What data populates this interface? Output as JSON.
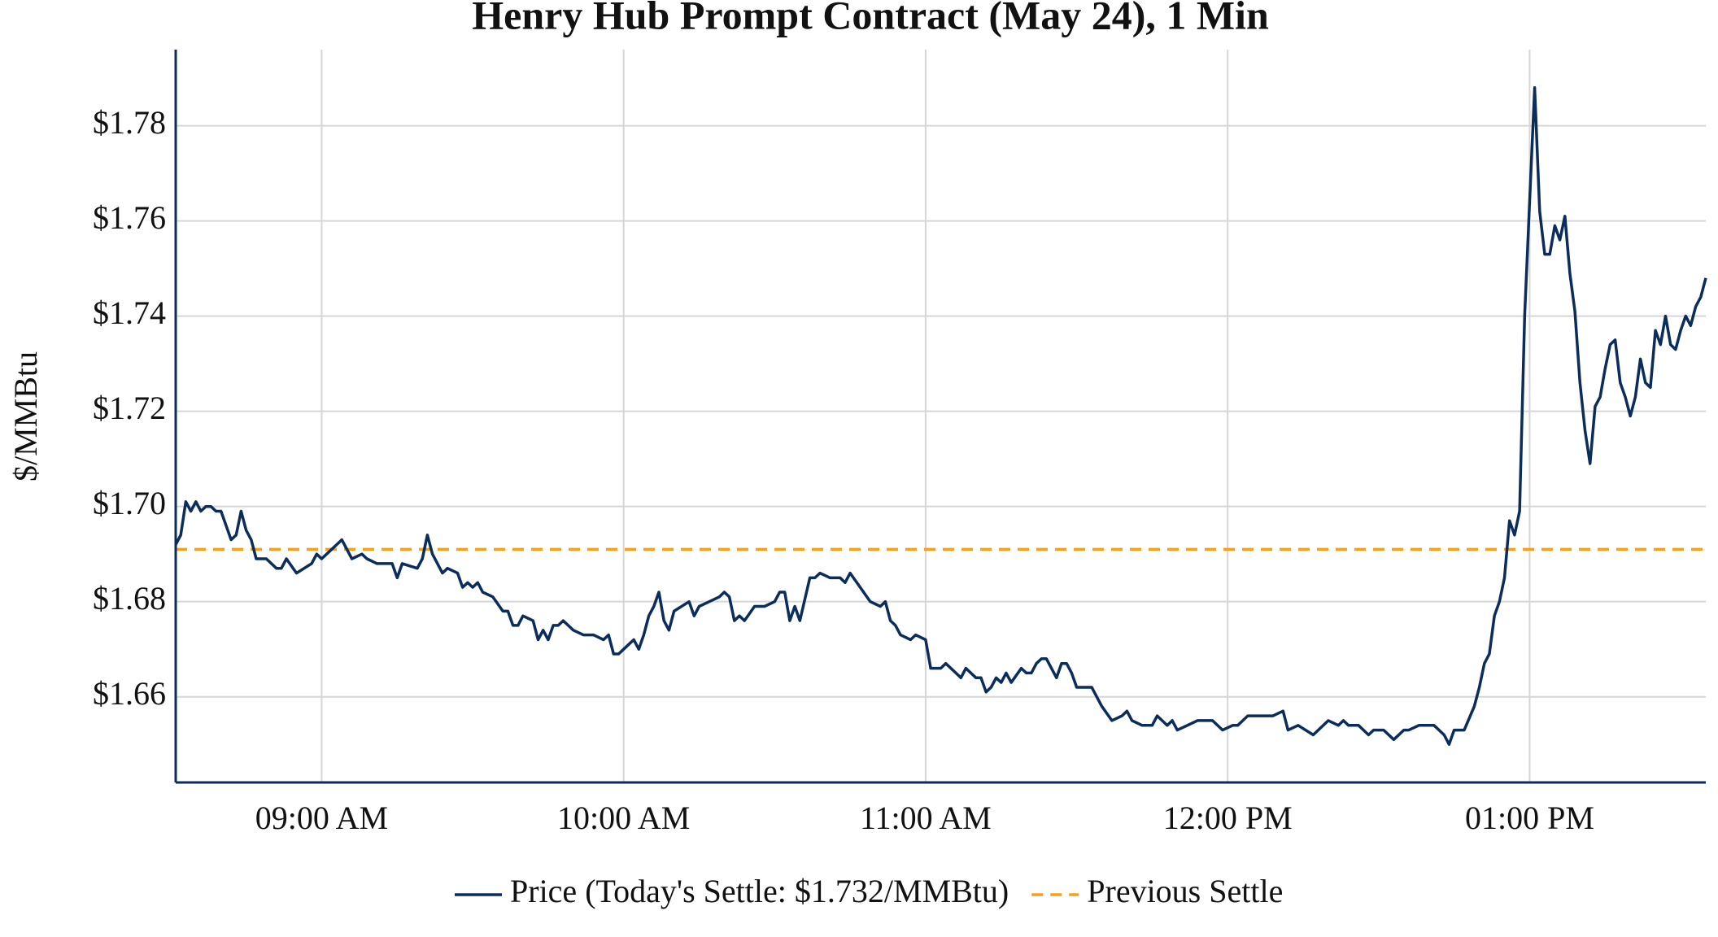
{
  "chart_data": {
    "type": "line",
    "title": "Henry Hub Prompt Contract (May 24), 1 Min",
    "ylabel": "$/MMBtu",
    "x": [
      "08:31 AM",
      "08:32 AM",
      "08:33 AM",
      "08:34 AM",
      "08:35 AM",
      "08:36 AM",
      "08:37 AM",
      "08:38 AM",
      "08:39 AM",
      "08:40 AM",
      "08:42 AM",
      "08:43 AM",
      "08:44 AM",
      "08:45 AM",
      "08:46 AM",
      "08:47 AM",
      "08:49 AM",
      "08:51 AM",
      "08:52 AM",
      "08:53 AM",
      "08:55 AM",
      "08:58 AM",
      "08:59 AM",
      "09:00 AM",
      "09:02 AM",
      "09:03 AM",
      "09:04 AM",
      "09:06 AM",
      "09:08 AM",
      "09:09 AM",
      "09:11 AM",
      "09:13 AM",
      "09:14 AM",
      "09:15 AM",
      "09:16 AM",
      "09:19 AM",
      "09:20 AM",
      "09:21 AM",
      "09:22 AM",
      "09:24 AM",
      "09:25 AM",
      "09:27 AM",
      "09:28 AM",
      "09:29 AM",
      "09:30 AM",
      "09:31 AM",
      "09:32 AM",
      "09:34 AM",
      "09:36 AM",
      "09:37 AM",
      "09:38 AM",
      "09:39 AM",
      "09:40 AM",
      "09:42 AM",
      "09:43 AM",
      "09:44 AM",
      "09:45 AM",
      "09:46 AM",
      "09:47 AM",
      "09:48 AM",
      "09:50 AM",
      "09:52 AM",
      "09:54 AM",
      "09:56 AM",
      "09:57 AM",
      "09:58 AM",
      "09:59 AM",
      "10:01 AM",
      "10:02 AM",
      "10:03 AM",
      "10:04 AM",
      "10:05 AM",
      "10:06 AM",
      "10:07 AM",
      "10:08 AM",
      "10:09 AM",
      "10:10 AM",
      "10:13 AM",
      "10:14 AM",
      "10:15 AM",
      "10:17 AM",
      "10:19 AM",
      "10:20 AM",
      "10:21 AM",
      "10:22 AM",
      "10:23 AM",
      "10:24 AM",
      "10:26 AM",
      "10:28 AM",
      "10:30 AM",
      "10:31 AM",
      "10:32 AM",
      "10:33 AM",
      "10:34 AM",
      "10:35 AM",
      "10:37 AM",
      "10:38 AM",
      "10:39 AM",
      "10:41 AM",
      "10:43 AM",
      "10:44 AM",
      "10:45 AM",
      "10:47 AM",
      "10:49 AM",
      "10:51 AM",
      "10:52 AM",
      "10:53 AM",
      "10:54 AM",
      "10:55 AM",
      "10:57 AM",
      "10:58 AM",
      "11:00 AM",
      "11:01 AM",
      "11:03 AM",
      "11:04 AM",
      "11:06 AM",
      "11:07 AM",
      "11:08 AM",
      "11:10 AM",
      "11:11 AM",
      "11:12 AM",
      "11:13 AM",
      "11:14 AM",
      "11:15 AM",
      "11:16 AM",
      "11:17 AM",
      "11:19 AM",
      "11:20 AM",
      "11:21 AM",
      "11:22 AM",
      "11:23 AM",
      "11:24 AM",
      "11:26 AM",
      "11:27 AM",
      "11:28 AM",
      "11:29 AM",
      "11:30 AM",
      "11:33 AM",
      "11:34 AM",
      "11:35 AM",
      "11:37 AM",
      "11:39 AM",
      "11:40 AM",
      "11:41 AM",
      "11:43 AM",
      "11:45 AM",
      "11:46 AM",
      "11:48 AM",
      "11:49 AM",
      "11:50 AM",
      "11:52 AM",
      "11:54 AM",
      "11:57 AM",
      "11:59 AM",
      "12:01 PM",
      "12:02 PM",
      "12:04 PM",
      "12:09 PM",
      "12:11 PM",
      "12:12 PM",
      "12:14 PM",
      "12:17 PM",
      "12:18 PM",
      "12:20 PM",
      "12:22 PM",
      "12:23 PM",
      "12:24 PM",
      "12:26 PM",
      "12:28 PM",
      "12:29 PM",
      "12:31 PM",
      "12:33 PM",
      "12:35 PM",
      "12:36 PM",
      "12:38 PM",
      "12:41 PM",
      "12:43 PM",
      "12:44 PM",
      "12:45 PM",
      "12:47 PM",
      "12:49 PM",
      "12:50 PM",
      "12:51 PM",
      "12:52 PM",
      "12:53 PM",
      "12:54 PM",
      "12:55 PM",
      "12:56 PM",
      "12:57 PM",
      "12:58 PM",
      "12:59 PM",
      "01:00 PM",
      "01:01 PM",
      "01:02 PM",
      "01:03 PM",
      "01:04 PM",
      "01:05 PM",
      "01:06 PM",
      "01:07 PM",
      "01:08 PM",
      "01:09 PM",
      "01:10 PM",
      "01:11 PM",
      "01:12 PM",
      "01:13 PM",
      "01:14 PM",
      "01:15 PM",
      "01:16 PM",
      "01:17 PM",
      "01:18 PM",
      "01:19 PM",
      "01:20 PM",
      "01:21 PM",
      "01:22 PM",
      "01:23 PM",
      "01:24 PM",
      "01:25 PM",
      "01:26 PM",
      "01:27 PM",
      "01:28 PM",
      "01:29 PM",
      "01:30 PM",
      "01:31 PM",
      "01:32 PM",
      "01:33 PM",
      "01:34 PM",
      "01:35 PM"
    ],
    "series": [
      {
        "name": "Price (Today's Settle: $1.732/MMBtu)",
        "color": "#0b2d5b",
        "values": [
          1.692,
          1.694,
          1.701,
          1.699,
          1.701,
          1.699,
          1.7,
          1.7,
          1.699,
          1.699,
          1.693,
          1.694,
          1.699,
          1.695,
          1.693,
          1.689,
          1.689,
          1.687,
          1.687,
          1.689,
          1.686,
          1.688,
          1.69,
          1.689,
          1.691,
          1.692,
          1.693,
          1.689,
          1.69,
          1.689,
          1.688,
          1.688,
          1.688,
          1.685,
          1.688,
          1.687,
          1.689,
          1.694,
          1.69,
          1.686,
          1.687,
          1.686,
          1.683,
          1.684,
          1.683,
          1.684,
          1.682,
          1.681,
          1.678,
          1.678,
          1.675,
          1.675,
          1.677,
          1.676,
          1.672,
          1.674,
          1.672,
          1.675,
          1.675,
          1.676,
          1.674,
          1.673,
          1.673,
          1.672,
          1.673,
          1.669,
          1.669,
          1.671,
          1.672,
          1.67,
          1.673,
          1.677,
          1.679,
          1.682,
          1.676,
          1.674,
          1.678,
          1.68,
          1.677,
          1.679,
          1.68,
          1.681,
          1.682,
          1.681,
          1.676,
          1.677,
          1.676,
          1.679,
          1.679,
          1.68,
          1.682,
          1.682,
          1.676,
          1.679,
          1.676,
          1.685,
          1.685,
          1.686,
          1.685,
          1.685,
          1.684,
          1.686,
          1.683,
          1.68,
          1.679,
          1.68,
          1.676,
          1.675,
          1.673,
          1.672,
          1.673,
          1.672,
          1.666,
          1.666,
          1.667,
          1.665,
          1.664,
          1.666,
          1.664,
          1.664,
          1.661,
          1.662,
          1.664,
          1.663,
          1.665,
          1.663,
          1.666,
          1.665,
          1.665,
          1.667,
          1.668,
          1.668,
          1.664,
          1.667,
          1.667,
          1.665,
          1.662,
          1.662,
          1.66,
          1.658,
          1.655,
          1.656,
          1.657,
          1.655,
          1.654,
          1.654,
          1.656,
          1.654,
          1.655,
          1.653,
          1.654,
          1.655,
          1.655,
          1.653,
          1.654,
          1.654,
          1.656,
          1.656,
          1.657,
          1.653,
          1.654,
          1.652,
          1.653,
          1.655,
          1.654,
          1.655,
          1.654,
          1.654,
          1.652,
          1.653,
          1.653,
          1.651,
          1.653,
          1.653,
          1.654,
          1.654,
          1.652,
          1.65,
          1.653,
          1.653,
          1.658,
          1.662,
          1.667,
          1.669,
          1.677,
          1.68,
          1.685,
          1.697,
          1.694,
          1.699,
          1.74,
          1.764,
          1.788,
          1.762,
          1.753,
          1.753,
          1.759,
          1.756,
          1.761,
          1.749,
          1.741,
          1.726,
          1.716,
          1.709,
          1.721,
          1.723,
          1.729,
          1.734,
          1.735,
          1.726,
          1.723,
          1.719,
          1.723,
          1.731,
          1.726,
          1.725,
          1.737,
          1.734,
          1.74,
          1.734,
          1.733,
          1.737,
          1.74,
          1.738,
          1.742,
          1.744,
          1.748
        ]
      }
    ],
    "reference_lines": [
      {
        "name": "Previous Settle",
        "value": 1.691,
        "color": "#f5a01a",
        "dashed": true
      }
    ],
    "xlim": [
      "08:31 AM",
      "01:35 PM"
    ],
    "xticks": [
      "09:00 AM",
      "10:00 AM",
      "11:00 AM",
      "12:00 PM",
      "01:00 PM"
    ],
    "ylim": [
      1.642,
      1.796
    ],
    "yticks": [
      {
        "value": 1.66,
        "label": "$1.66"
      },
      {
        "value": 1.68,
        "label": "$1.68"
      },
      {
        "value": 1.7,
        "label": "$1.70"
      },
      {
        "value": 1.72,
        "label": "$1.72"
      },
      {
        "value": 1.74,
        "label": "$1.74"
      },
      {
        "value": 1.76,
        "label": "$1.76"
      },
      {
        "value": 1.78,
        "label": "$1.78"
      }
    ],
    "grid": true,
    "legend": "bottom"
  }
}
